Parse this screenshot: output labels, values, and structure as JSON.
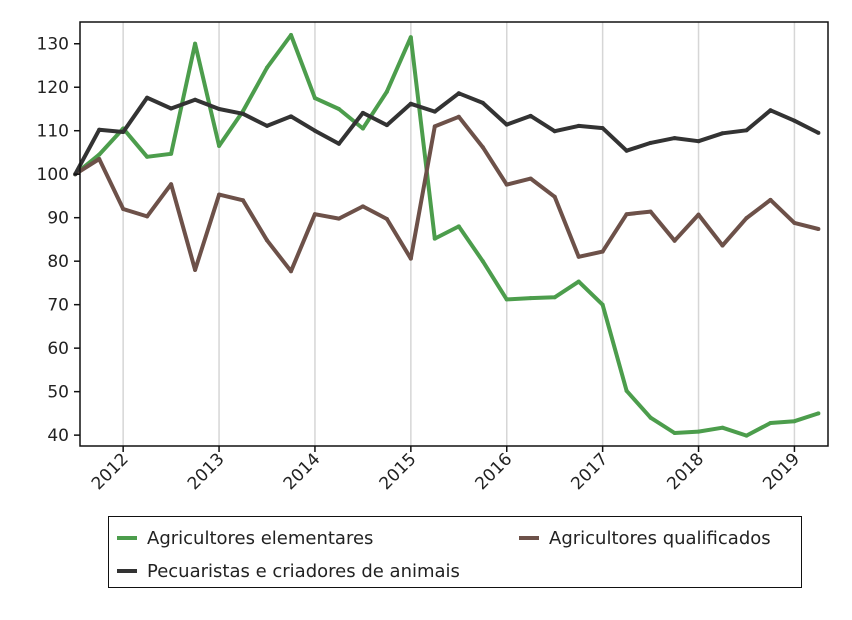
{
  "chart_data": {
    "type": "line",
    "title": "",
    "xlabel": "",
    "ylabel": "",
    "ylim": [
      37.5,
      135
    ],
    "yticks": [
      40,
      50,
      60,
      70,
      80,
      90,
      100,
      110,
      120,
      130
    ],
    "xlim": [
      2011.55,
      2019.35
    ],
    "xticks": [
      {
        "value": 2012,
        "label": "2012"
      },
      {
        "value": 2013,
        "label": "2013"
      },
      {
        "value": 2014,
        "label": "2014"
      },
      {
        "value": 2015,
        "label": "2015"
      },
      {
        "value": 2016,
        "label": "2016"
      },
      {
        "value": 2017,
        "label": "2017"
      },
      {
        "value": 2018,
        "label": "2018"
      },
      {
        "value": 2019,
        "label": "2019"
      }
    ],
    "grid": "vertical",
    "legend_position": "bottom",
    "x": [
      2011.5,
      2011.75,
      2012.0,
      2012.25,
      2012.5,
      2012.75,
      2013.0,
      2013.25,
      2013.5,
      2013.75,
      2014.0,
      2014.25,
      2014.5,
      2014.75,
      2015.0,
      2015.25,
      2015.5,
      2015.75,
      2016.0,
      2016.25,
      2016.5,
      2016.75,
      2017.0,
      2017.25,
      2017.5,
      2017.75,
      2018.0,
      2018.25,
      2018.5,
      2018.75,
      2019.0,
      2019.25
    ],
    "series": [
      {
        "name": "Agricultores elementares",
        "color": "#4c9d4c",
        "values": [
          100,
          104.5,
          110.5,
          104,
          104.7,
          130,
          106.5,
          114.5,
          124.5,
          132,
          117.5,
          115,
          110.5,
          119,
          131.5,
          85.2,
          88,
          80,
          71.2,
          71.5,
          71.7,
          75.3,
          70,
          50.2,
          44,
          40.5,
          40.8,
          41.7,
          39.9,
          42.8,
          43.2,
          45
        ]
      },
      {
        "name": "Agricultores qualificados",
        "color": "#6d5149",
        "values": [
          100,
          103.5,
          92,
          90.3,
          97.7,
          78,
          95.3,
          94,
          84.8,
          77.7,
          90.8,
          89.8,
          92.6,
          89.7,
          80.6,
          111,
          113.2,
          106.2,
          97.6,
          99,
          94.8,
          81,
          82.2,
          90.8,
          91.4,
          84.7,
          90.7,
          83.6,
          89.9,
          94.1,
          88.8,
          87.4
        ]
      },
      {
        "name": "Pecuaristas e criadores de animais",
        "color": "#333333",
        "values": [
          100,
          110.2,
          109.7,
          117.6,
          115.1,
          117.1,
          115,
          113.9,
          111.1,
          113.3,
          110,
          107,
          114.1,
          111.3,
          116.2,
          114.4,
          118.6,
          116.4,
          111.4,
          113.4,
          109.9,
          111.1,
          110.6,
          105.4,
          107.2,
          108.3,
          107.6,
          109.4,
          110.1,
          114.7,
          112.3,
          109.5
        ]
      }
    ]
  }
}
